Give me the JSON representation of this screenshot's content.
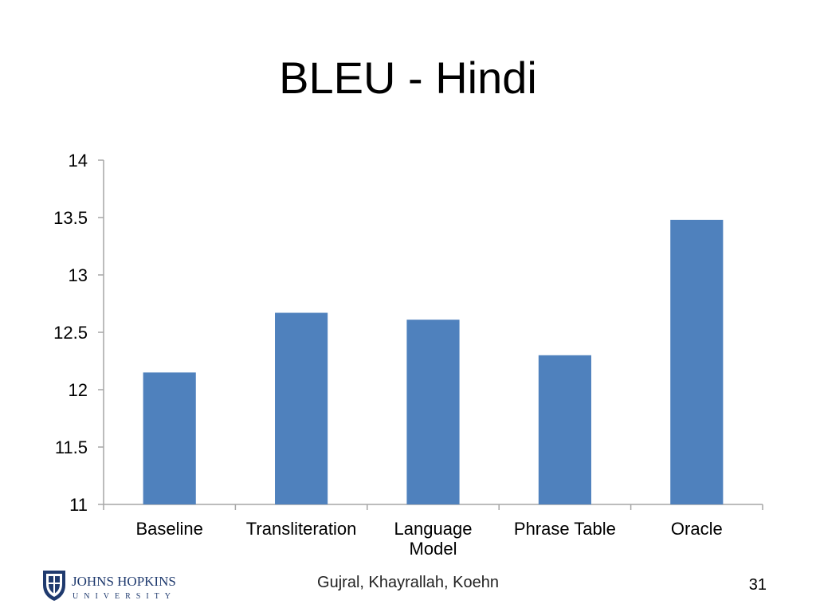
{
  "slide": {
    "title": "BLEU - Hindi",
    "authors": "Gujral, Khayrallah, Koehn",
    "page_number": "31",
    "logo": {
      "icon": "johns-hopkins-shield-icon",
      "name_line1": "JOHNS HOPKINS",
      "name_line2": "UNIVERSITY",
      "color": "#1f3a6e"
    }
  },
  "chart_data": {
    "type": "bar",
    "categories": [
      [
        "Baseline"
      ],
      [
        "Transliteration"
      ],
      [
        "Language",
        "Model"
      ],
      [
        "Phrase Table"
      ],
      [
        "Oracle"
      ]
    ],
    "values": [
      12.15,
      12.67,
      12.61,
      12.3,
      13.48
    ],
    "ylim": [
      11,
      14
    ],
    "yticks": [
      "11",
      "11.5",
      "12",
      "12.5",
      "13",
      "13.5",
      "14"
    ],
    "title": "",
    "xlabel": "",
    "ylabel": "",
    "grid": false,
    "bar_color": "#4f81bd",
    "axis_color": "#a6a6a6"
  }
}
